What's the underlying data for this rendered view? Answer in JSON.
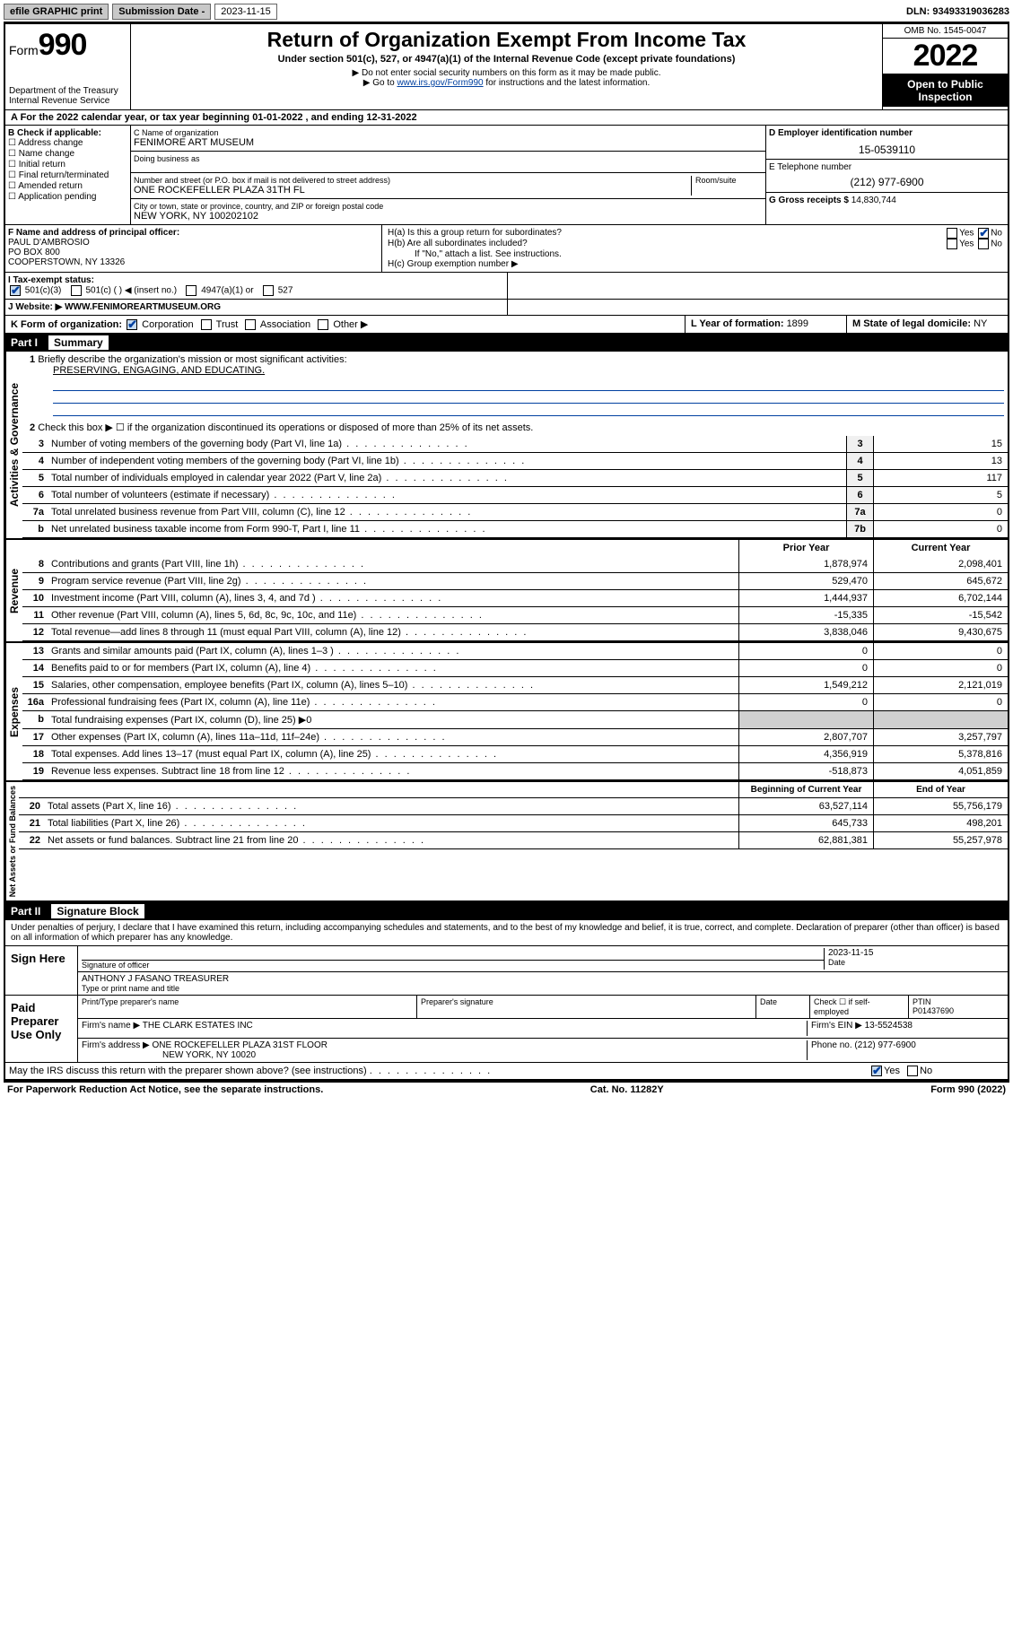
{
  "header": {
    "efile": "efile GRAPHIC print",
    "submission_label": "Submission Date - 2023-11-15",
    "dln_label": "DLN: 93493319036283"
  },
  "top": {
    "form_prefix": "Form",
    "form_number": "990",
    "dept": "Department of the Treasury",
    "irs": "Internal Revenue Service",
    "title": "Return of Organization Exempt From Income Tax",
    "subtitle": "Under section 501(c), 527, or 4947(a)(1) of the Internal Revenue Code (except private foundations)",
    "note1": "▶ Do not enter social security numbers on this form as it may be made public.",
    "note2_prefix": "▶ Go to ",
    "note2_link": "www.irs.gov/Form990",
    "note2_suffix": " for instructions and the latest information.",
    "omb": "OMB No. 1545-0047",
    "year": "2022",
    "open": "Open to Public Inspection"
  },
  "rowA": "A For the 2022 calendar year, or tax year beginning 01-01-2022   , and ending 12-31-2022",
  "colB": {
    "hdr": "B Check if applicable:",
    "items": [
      "Address change",
      "Name change",
      "Initial return",
      "Final return/terminated",
      "Amended return",
      "Application pending"
    ]
  },
  "colC": {
    "name_lbl": "C Name of organization",
    "name_val": "FENIMORE ART MUSEUM",
    "dba_lbl": "Doing business as",
    "addr_lbl": "Number and street (or P.O. box if mail is not delivered to street address)",
    "room_lbl": "Room/suite",
    "addr_val": "ONE ROCKEFELLER PLAZA 31TH FL",
    "city_lbl": "City or town, state or province, country, and ZIP or foreign postal code",
    "city_val": "NEW YORK, NY  100202102"
  },
  "colD": {
    "ein_lbl": "D Employer identification number",
    "ein_val": "15-0539110",
    "tel_lbl": "E Telephone number",
    "tel_val": "(212) 977-6900",
    "gross_lbl": "G Gross receipts $ ",
    "gross_val": "14,830,744"
  },
  "rowF": {
    "lbl": "F  Name and address of principal officer:",
    "name": "PAUL D'AMBROSIO",
    "addr1": "PO BOX 800",
    "addr2": "COOPERSTOWN, NY  13326"
  },
  "rowH": {
    "ha": "H(a)  Is this a group return for subordinates?",
    "hb": "H(b)  Are all subordinates included?",
    "hb_note": "If \"No,\" attach a list. See instructions.",
    "hc": "H(c)  Group exemption number ▶"
  },
  "rowI": {
    "lbl": "I   Tax-exempt status:",
    "opts": [
      "501(c)(3)",
      "501(c) (  ) ◀ (insert no.)",
      "4947(a)(1) or",
      "527"
    ]
  },
  "rowJ": {
    "lbl": "J   Website: ▶",
    "val": "WWW.FENIMOREARTMUSEUM.ORG"
  },
  "rowK": {
    "lbl": "K Form of organization:",
    "opts": [
      "Corporation",
      "Trust",
      "Association",
      "Other ▶"
    ]
  },
  "rowL": {
    "lbl": "L Year of formation: ",
    "val": "1899"
  },
  "rowM": {
    "lbl": "M State of legal domicile: ",
    "val": "NY"
  },
  "part1": {
    "no": "Part I",
    "title": "Summary"
  },
  "summary": {
    "q1_lbl": "Briefly describe the organization's mission or most significant activities:",
    "q1_val": "PRESERVING, ENGAGING, AND EDUCATING.",
    "q2": "Check this box ▶ ☐  if the organization discontinued its operations or disposed of more than 25% of its net assets.",
    "lines_gov": [
      {
        "no": "3",
        "txt": "Number of voting members of the governing body (Part VI, line 1a)",
        "cell": "3",
        "val": "15"
      },
      {
        "no": "4",
        "txt": "Number of independent voting members of the governing body (Part VI, line 1b)",
        "cell": "4",
        "val": "13"
      },
      {
        "no": "5",
        "txt": "Total number of individuals employed in calendar year 2022 (Part V, line 2a)",
        "cell": "5",
        "val": "117"
      },
      {
        "no": "6",
        "txt": "Total number of volunteers (estimate if necessary)",
        "cell": "6",
        "val": "5"
      },
      {
        "no": "7a",
        "txt": "Total unrelated business revenue from Part VIII, column (C), line 12",
        "cell": "7a",
        "val": "0"
      },
      {
        "no": "b",
        "txt": "Net unrelated business taxable income from Form 990-T, Part I, line 11",
        "cell": "7b",
        "val": "0"
      }
    ],
    "yr_prior": "Prior Year",
    "yr_curr": "Current Year",
    "rev_lines": [
      {
        "no": "8",
        "txt": "Contributions and grants (Part VIII, line 1h)",
        "prior": "1,878,974",
        "curr": "2,098,401"
      },
      {
        "no": "9",
        "txt": "Program service revenue (Part VIII, line 2g)",
        "prior": "529,470",
        "curr": "645,672"
      },
      {
        "no": "10",
        "txt": "Investment income (Part VIII, column (A), lines 3, 4, and 7d )",
        "prior": "1,444,937",
        "curr": "6,702,144"
      },
      {
        "no": "11",
        "txt": "Other revenue (Part VIII, column (A), lines 5, 6d, 8c, 9c, 10c, and 11e)",
        "prior": "-15,335",
        "curr": "-15,542"
      },
      {
        "no": "12",
        "txt": "Total revenue—add lines 8 through 11 (must equal Part VIII, column (A), line 12)",
        "prior": "3,838,046",
        "curr": "9,430,675"
      }
    ],
    "exp_lines": [
      {
        "no": "13",
        "txt": "Grants and similar amounts paid (Part IX, column (A), lines 1–3 )",
        "prior": "0",
        "curr": "0"
      },
      {
        "no": "14",
        "txt": "Benefits paid to or for members (Part IX, column (A), line 4)",
        "prior": "0",
        "curr": "0"
      },
      {
        "no": "15",
        "txt": "Salaries, other compensation, employee benefits (Part IX, column (A), lines 5–10)",
        "prior": "1,549,212",
        "curr": "2,121,019"
      },
      {
        "no": "16a",
        "txt": "Professional fundraising fees (Part IX, column (A), line 11e)",
        "prior": "0",
        "curr": "0"
      },
      {
        "no": "b",
        "txt": "Total fundraising expenses (Part IX, column (D), line 25) ▶0",
        "prior": "",
        "curr": "",
        "grey": true
      },
      {
        "no": "17",
        "txt": "Other expenses (Part IX, column (A), lines 11a–11d, 11f–24e)",
        "prior": "2,807,707",
        "curr": "3,257,797"
      },
      {
        "no": "18",
        "txt": "Total expenses. Add lines 13–17 (must equal Part IX, column (A), line 25)",
        "prior": "4,356,919",
        "curr": "5,378,816"
      },
      {
        "no": "19",
        "txt": "Revenue less expenses. Subtract line 18 from line 12",
        "prior": "-518,873",
        "curr": "4,051,859"
      }
    ],
    "na_hdr_prior": "Beginning of Current Year",
    "na_hdr_curr": "End of Year",
    "na_lines": [
      {
        "no": "20",
        "txt": "Total assets (Part X, line 16)",
        "prior": "63,527,114",
        "curr": "55,756,179"
      },
      {
        "no": "21",
        "txt": "Total liabilities (Part X, line 26)",
        "prior": "645,733",
        "curr": "498,201"
      },
      {
        "no": "22",
        "txt": "Net assets or fund balances. Subtract line 21 from line 20",
        "prior": "62,881,381",
        "curr": "55,257,978"
      }
    ]
  },
  "vlabels": {
    "gov": "Activities & Governance",
    "rev": "Revenue",
    "exp": "Expenses",
    "na": "Net Assets or Fund Balances"
  },
  "part2": {
    "no": "Part II",
    "title": "Signature Block"
  },
  "sig": {
    "penalty": "Under penalties of perjury, I declare that I have examined this return, including accompanying schedules and statements, and to the best of my knowledge and belief, it is true, correct, and complete. Declaration of preparer (other than officer) is based on all information of which preparer has any knowledge.",
    "sign_here": "Sign Here",
    "sig_officer": "Signature of officer",
    "sig_date": "2023-11-15",
    "date_lbl": "Date",
    "officer_name": "ANTHONY J FASANO  TREASURER",
    "officer_type": "Type or print name and title",
    "paid": "Paid Preparer Use Only",
    "prep_name_lbl": "Print/Type preparer's name",
    "prep_sig_lbl": "Preparer's signature",
    "prep_date_lbl": "Date",
    "prep_check": "Check ☐ if self-employed",
    "ptin_lbl": "PTIN",
    "ptin_val": "P01437690",
    "firm_name_lbl": "Firm's name   ▶",
    "firm_name": "THE CLARK ESTATES INC",
    "firm_ein_lbl": "Firm's EIN ▶",
    "firm_ein": "13-5524538",
    "firm_addr_lbl": "Firm's address ▶",
    "firm_addr1": "ONE ROCKEFELLER PLAZA 31ST FLOOR",
    "firm_addr2": "NEW YORK, NY  10020",
    "phone_lbl": "Phone no. ",
    "phone_val": "(212) 977-6900",
    "discuss": "May the IRS discuss this return with the preparer shown above? (see instructions)"
  },
  "footer": {
    "pra": "For Paperwork Reduction Act Notice, see the separate instructions.",
    "cat": "Cat. No. 11282Y",
    "form": "Form 990 (2022)"
  },
  "colors": {
    "link": "#0040a0",
    "blue_bg": "#c8dcf0",
    "grey_bg": "#d0d0d0"
  }
}
